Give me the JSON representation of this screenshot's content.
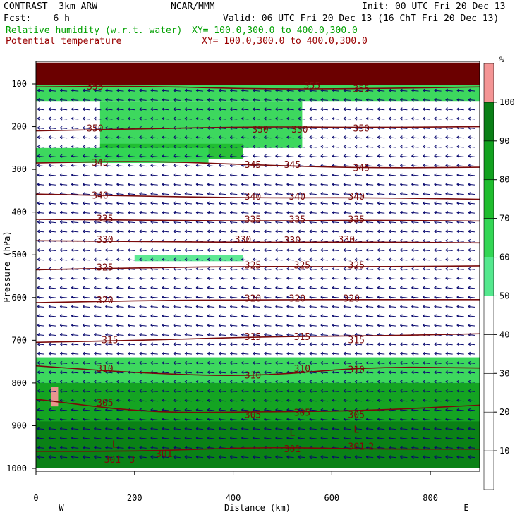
{
  "header": {
    "model": "CONTRAST  3km ARW",
    "center": "NCAR/MMM",
    "init": "Init: 00 UTC Fri 20 Dec 13",
    "fcst": "Fcst:    6 h",
    "valid": "Valid: 06 UTC Fri 20 Dec 13 (16 ChT Fri 20 Dec 13)",
    "field1": "Relative humidity (w.r.t. water)",
    "field1_xy": "XY= 100.0,300.0 to 400.0,300.0",
    "field2": "Potential temperature",
    "field2_xy": "XY= 100.0,300.0 to 400.0,300.0",
    "colors": {
      "field1": "#00a000",
      "field2": "#990000"
    }
  },
  "chart_data": {
    "type": "heatmap",
    "xlabel": "Distance (km)",
    "ylabel": "Pressure (hPa)",
    "xlim": [
      0,
      900
    ],
    "ylim": [
      1000,
      50
    ],
    "xticks": [
      0,
      200,
      400,
      600,
      800
    ],
    "yticks": [
      100,
      200,
      300,
      400,
      500,
      600,
      700,
      800,
      900,
      1000
    ],
    "x_end_labels": {
      "left": "W",
      "right": "E"
    },
    "colorbar": {
      "unit": "%",
      "levels": [
        10,
        20,
        30,
        40,
        50,
        60,
        70,
        80,
        90,
        100
      ],
      "colors": [
        "#ffffff",
        "#ffffff",
        "#ffffff",
        "#ffffff",
        "#ffffff",
        "#55e88e",
        "#33d655",
        "#1fbd2e",
        "#12a11f",
        "#0a7f16",
        "#f49595"
      ]
    },
    "rh_regions": [
      {
        "level": 100,
        "x": [
          0,
          900
        ],
        "p": [
          50,
          103
        ]
      },
      {
        "level": 60,
        "x": [
          0,
          900
        ],
        "p": [
          103,
          140
        ]
      },
      {
        "level": 60,
        "x": [
          130,
          540
        ],
        "p": [
          140,
          250
        ]
      },
      {
        "level": 70,
        "x": [
          130,
          420
        ],
        "p": [
          240,
          275
        ]
      },
      {
        "level": 60,
        "x": [
          0,
          350
        ],
        "p": [
          250,
          285
        ]
      },
      {
        "level": 50,
        "x": [
          200,
          420
        ],
        "p": [
          500,
          515
        ]
      },
      {
        "level": 60,
        "x": [
          0,
          900
        ],
        "p": [
          740,
          1000
        ]
      },
      {
        "level": 80,
        "x": [
          0,
          900
        ],
        "p": [
          800,
          1000
        ]
      },
      {
        "level": 90,
        "x": [
          0,
          900
        ],
        "p": [
          890,
          1000
        ]
      },
      {
        "level": 100,
        "x": [
          30,
          45
        ],
        "p": [
          810,
          855
        ]
      }
    ],
    "theta_contours": [
      {
        "value": 355,
        "label_x": [
          110,
          550,
          650
        ],
        "p": [
          107,
          105,
          112,
          111,
          107
        ]
      },
      {
        "value": 350,
        "label_x": [
          110,
          450,
          530,
          650
        ],
        "p": [
          210,
          205,
          200,
          202,
          200
        ]
      },
      {
        "value": 345,
        "label_x": [
          130,
          440,
          510,
          660
        ],
        "p": [
          285,
          280,
          290,
          297,
          295
        ]
      },
      {
        "value": 340,
        "label_x": [
          130,
          440,
          540,
          650
        ],
        "p": [
          358,
          363,
          367,
          366,
          370
        ]
      },
      {
        "value": 335,
        "label_x": [
          140,
          440,
          540,
          650
        ],
        "p": [
          417,
          419,
          421,
          419,
          421
        ]
      },
      {
        "value": 330,
        "label_x": [
          140,
          440,
          540,
          650
        ],
        "p": [
          467,
          469,
          471,
          470,
          472
        ]
      },
      {
        "value": 325,
        "label_x": [
          140,
          440,
          540,
          650
        ],
        "p": [
          535,
          530,
          527,
          528,
          526
        ]
      },
      {
        "value": 320,
        "label_x": [
          140,
          440,
          540,
          650
        ],
        "p": [
          612,
          607,
          605,
          605,
          605
        ]
      },
      {
        "value": 315,
        "label_x": [
          150,
          440,
          540,
          650
        ],
        "p": [
          705,
          700,
          692,
          690,
          685
        ]
      },
      {
        "value": 310,
        "label_x": [
          140,
          440,
          540,
          650
        ],
        "p": [
          760,
          778,
          785,
          762,
          765
        ]
      },
      {
        "value": 305,
        "label_x": [
          140,
          440,
          540,
          650
        ],
        "p": [
          838,
          870,
          868,
          865,
          852
        ]
      },
      {
        "value": 301,
        "label_x": [
          260,
          520,
          650
        ],
        "p": [
          960,
          960,
          950,
          955,
          955
        ]
      }
    ],
    "inline_labels": [
      {
        "text": "355",
        "x": 120,
        "p": 107
      },
      {
        "text": "355",
        "x": 560,
        "p": 105
      },
      {
        "text": "355",
        "x": 660,
        "p": 112
      },
      {
        "text": "350",
        "x": 120,
        "p": 205
      },
      {
        "text": "350",
        "x": 455,
        "p": 207
      },
      {
        "text": "350",
        "x": 535,
        "p": 207
      },
      {
        "text": "350",
        "x": 660,
        "p": 205
      },
      {
        "text": "345",
        "x": 130,
        "p": 285
      },
      {
        "text": "345",
        "x": 440,
        "p": 290
      },
      {
        "text": "345",
        "x": 520,
        "p": 290
      },
      {
        "text": "345",
        "x": 660,
        "p": 297
      },
      {
        "text": "340",
        "x": 130,
        "p": 362
      },
      {
        "text": "340",
        "x": 440,
        "p": 364
      },
      {
        "text": "340",
        "x": 530,
        "p": 364
      },
      {
        "text": "340",
        "x": 650,
        "p": 364
      },
      {
        "text": "335",
        "x": 140,
        "p": 416
      },
      {
        "text": "335",
        "x": 440,
        "p": 418
      },
      {
        "text": "335",
        "x": 530,
        "p": 418
      },
      {
        "text": "335",
        "x": 650,
        "p": 418
      },
      {
        "text": "330",
        "x": 140,
        "p": 465
      },
      {
        "text": "330",
        "x": 420,
        "p": 465
      },
      {
        "text": "330",
        "x": 520,
        "p": 467
      },
      {
        "text": "330",
        "x": 630,
        "p": 465
      },
      {
        "text": "325",
        "x": 140,
        "p": 530
      },
      {
        "text": "325",
        "x": 440,
        "p": 525
      },
      {
        "text": "325",
        "x": 540,
        "p": 525
      },
      {
        "text": "325",
        "x": 650,
        "p": 525
      },
      {
        "text": "320",
        "x": 140,
        "p": 607
      },
      {
        "text": "320",
        "x": 440,
        "p": 603
      },
      {
        "text": "320",
        "x": 530,
        "p": 603
      },
      {
        "text": "320",
        "x": 640,
        "p": 603
      },
      {
        "text": "315",
        "x": 150,
        "p": 700
      },
      {
        "text": "315",
        "x": 440,
        "p": 693
      },
      {
        "text": "315",
        "x": 540,
        "p": 693
      },
      {
        "text": "315",
        "x": 650,
        "p": 700
      },
      {
        "text": "310",
        "x": 140,
        "p": 767
      },
      {
        "text": "310",
        "x": 440,
        "p": 783
      },
      {
        "text": "310",
        "x": 540,
        "p": 767
      },
      {
        "text": "310",
        "x": 650,
        "p": 770
      },
      {
        "text": "305",
        "x": 140,
        "p": 847
      },
      {
        "text": "305",
        "x": 440,
        "p": 875
      },
      {
        "text": "305",
        "x": 540,
        "p": 870
      },
      {
        "text": "305",
        "x": 650,
        "p": 875
      },
      {
        "text": "301",
        "x": 260,
        "p": 967
      },
      {
        "text": "301",
        "x": 520,
        "p": 955
      },
      {
        "text": "301",
        "x": 650,
        "p": 950
      }
    ],
    "extrema_labels": [
      {
        "text": "L",
        "x": 160,
        "p": 945
      },
      {
        "text": "301",
        "x": 155,
        "p": 980
      },
      {
        "text": "3",
        "x": 195,
        "p": 980
      },
      {
        "text": "L",
        "x": 520,
        "p": 917
      },
      {
        "text": "L",
        "x": 650,
        "p": 910
      },
      {
        "text": "2",
        "x": 680,
        "p": 950
      }
    ],
    "wind_vectors": {
      "direction": "easterly",
      "color": "#0a0a70",
      "grid_x_spacing_km": 23,
      "grid_p_spacing_hPa": 22
    }
  }
}
